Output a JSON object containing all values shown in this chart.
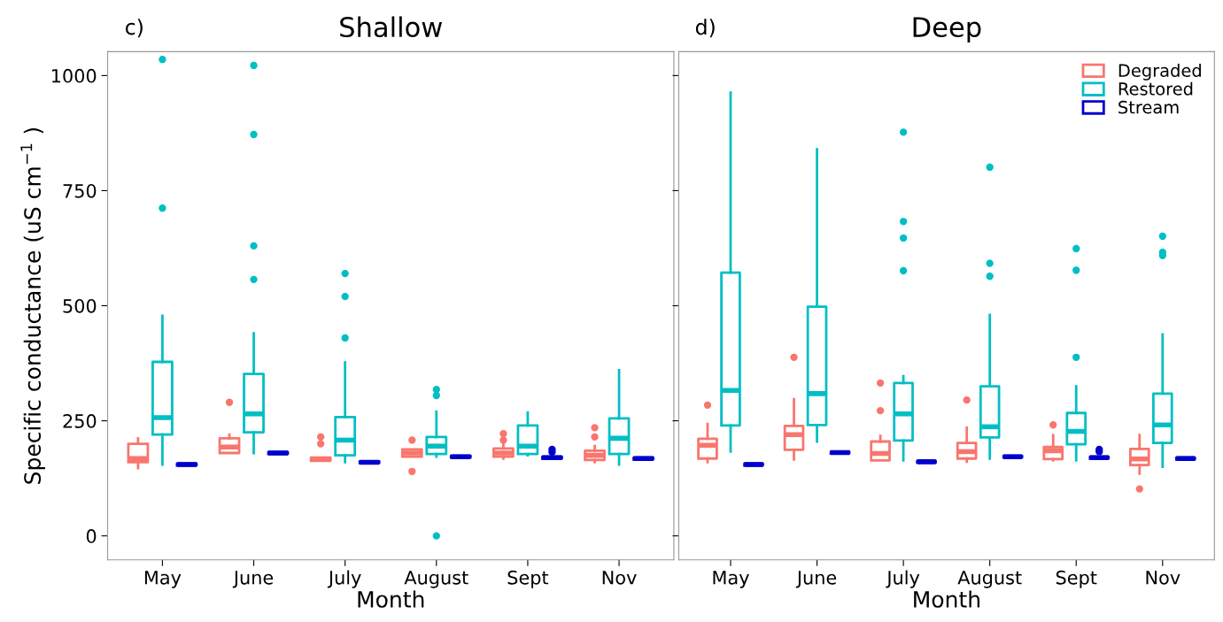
{
  "chart_data": [
    {
      "type": "box",
      "title": "Shallow",
      "annotations": [
        "c)"
      ],
      "xlabel": "Month",
      "ylabel": "Specific conductance (uS cm$^{−1}$ )",
      "categories": [
        "May",
        "June",
        "July",
        "August",
        "Sept",
        "Nov"
      ],
      "ylim": [
        -52,
        1052
      ],
      "yticks": [
        0,
        250,
        500,
        750,
        1000
      ],
      "grid": false,
      "legend": false,
      "series": [
        {
          "color": "#f8766d",
          "boxes": [
            {
              "low": 147,
              "q1": 160,
              "median": 168,
              "q3": 200,
              "high": 212
            },
            {
              "low": 180,
              "q1": 180,
              "median": 193,
              "q3": 212,
              "high": 220,
              "outliers": [
                290
              ]
            },
            {
              "low": 163,
              "q1": 163,
              "median": 166,
              "q3": 170,
              "high": 170,
              "outliers": [
                200,
                215
              ]
            },
            {
              "low": 172,
              "q1": 172,
              "median": 180,
              "q3": 188,
              "high": 188,
              "outliers": [
                140,
                208
              ]
            },
            {
              "low": 168,
              "q1": 172,
              "median": 180,
              "q3": 190,
              "high": 200,
              "outliers": [
                208,
                222
              ]
            },
            {
              "low": 160,
              "q1": 165,
              "median": 175,
              "q3": 185,
              "high": 195,
              "outliers": [
                215,
                235
              ]
            }
          ]
        },
        {
          "color": "#00bfc4",
          "boxes": [
            {
              "low": 155,
              "q1": 220,
              "median": 257,
              "q3": 378,
              "high": 478,
              "outliers": [
                712,
                1035
              ]
            },
            {
              "low": 180,
              "q1": 225,
              "median": 265,
              "q3": 352,
              "high": 440,
              "outliers": [
                557,
                630,
                872,
                1022
              ]
            },
            {
              "low": 160,
              "q1": 175,
              "median": 208,
              "q3": 258,
              "high": 377,
              "outliers": [
                430,
                520,
                570
              ]
            },
            {
              "low": 172,
              "q1": 178,
              "median": 195,
              "q3": 215,
              "high": 270,
              "outliers": [
                0,
                305,
                318
              ]
            },
            {
              "low": 175,
              "q1": 178,
              "median": 195,
              "q3": 240,
              "high": 268
            },
            {
              "low": 155,
              "q1": 178,
              "median": 212,
              "q3": 255,
              "high": 360
            }
          ]
        },
        {
          "color": "#0000cd",
          "boxes": [
            {
              "low": 153,
              "q1": 153,
              "median": 155,
              "q3": 157,
              "high": 157
            },
            {
              "low": 178,
              "q1": 178,
              "median": 180,
              "q3": 182,
              "high": 182
            },
            {
              "low": 158,
              "q1": 158,
              "median": 160,
              "q3": 162,
              "high": 162
            },
            {
              "low": 170,
              "q1": 170,
              "median": 172,
              "q3": 174,
              "high": 174
            },
            {
              "low": 168,
              "q1": 168,
              "median": 170,
              "q3": 172,
              "high": 172,
              "outliers": [
                182,
                188
              ]
            },
            {
              "low": 166,
              "q1": 166,
              "median": 168,
              "q3": 170,
              "high": 170
            }
          ]
        }
      ]
    },
    {
      "type": "box",
      "title": "Deep",
      "annotations": [
        "d)"
      ],
      "xlabel": "Month",
      "categories": [
        "May",
        "June",
        "July",
        "August",
        "Sept",
        "Nov"
      ],
      "ylim": [
        -52,
        1052
      ],
      "yticks": [
        0,
        250,
        500,
        750,
        1000
      ],
      "tick_labels": "x",
      "grid": false,
      "legend": "top right",
      "series": [
        {
          "name": "Degraded",
          "color": "#f8766d",
          "boxes": [
            {
              "low": 160,
              "q1": 168,
              "median": 197,
              "q3": 211,
              "high": 243,
              "outliers": [
                284
              ]
            },
            {
              "low": 166,
              "q1": 187,
              "median": 220,
              "q3": 239,
              "high": 297,
              "outliers": [
                388
              ]
            },
            {
              "low": 164,
              "q1": 164,
              "median": 179,
              "q3": 205,
              "high": 217,
              "outliers": [
                272,
                332
              ]
            },
            {
              "low": 161,
              "q1": 168,
              "median": 183,
              "q3": 202,
              "high": 235,
              "outliers": [
                295
              ]
            },
            {
              "low": 164,
              "q1": 167,
              "median": 185,
              "q3": 193,
              "high": 219,
              "outliers": [
                241
              ]
            },
            {
              "low": 135,
              "q1": 154,
              "median": 167,
              "q3": 189,
              "high": 219,
              "outliers": [
                102
              ]
            }
          ]
        },
        {
          "name": "Restored",
          "color": "#00bfc4",
          "boxes": [
            {
              "low": 183,
              "q1": 240,
              "median": 316,
              "q3": 572,
              "high": 963
            },
            {
              "low": 205,
              "q1": 241,
              "median": 309,
              "q3": 498,
              "high": 840
            },
            {
              "low": 164,
              "q1": 207,
              "median": 265,
              "q3": 332,
              "high": 347,
              "outliers": [
                576,
                647,
                683,
                877
              ]
            },
            {
              "low": 168,
              "q1": 214,
              "median": 237,
              "q3": 325,
              "high": 480,
              "outliers": [
                564,
                592,
                801
              ]
            },
            {
              "low": 164,
              "q1": 199,
              "median": 227,
              "q3": 267,
              "high": 325,
              "outliers": [
                388,
                577,
                624
              ]
            },
            {
              "low": 150,
              "q1": 202,
              "median": 241,
              "q3": 309,
              "high": 438,
              "outliers": [
                609,
                616,
                651
              ]
            }
          ]
        },
        {
          "name": "Stream",
          "color": "#0000cd",
          "boxes": [
            {
              "low": 153,
              "q1": 153,
              "median": 155,
              "q3": 157,
              "high": 157
            },
            {
              "low": 179,
              "q1": 179,
              "median": 181,
              "q3": 183,
              "high": 183
            },
            {
              "low": 159,
              "q1": 159,
              "median": 161,
              "q3": 163,
              "high": 163
            },
            {
              "low": 170,
              "q1": 170,
              "median": 172,
              "q3": 174,
              "high": 174
            },
            {
              "low": 168,
              "q1": 168,
              "median": 170,
              "q3": 172,
              "high": 172,
              "outliers": [
                183,
                188
              ]
            },
            {
              "low": 166,
              "q1": 166,
              "median": 168,
              "q3": 170,
              "high": 170
            }
          ]
        }
      ]
    }
  ]
}
